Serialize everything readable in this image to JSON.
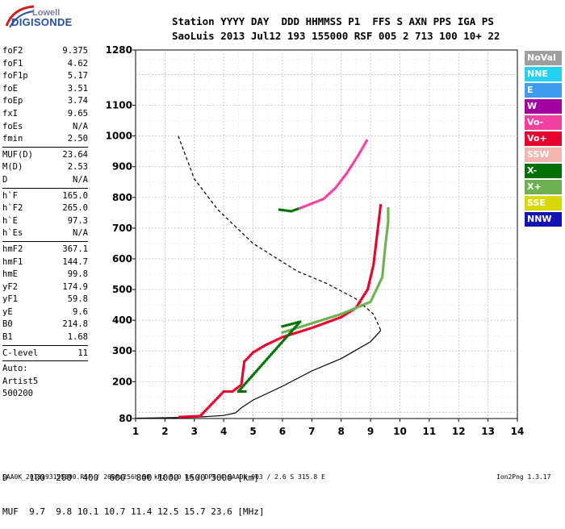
{
  "logo": {
    "line1": "Lowell",
    "line2": "DIGISONDE"
  },
  "header": {
    "line1": "Station YYYY DAY  DDD HHMMSS P1  FFS S AXN PPS IGA PS",
    "line2": "SaoLuis 2013 Jul12 193 155000 RSF 005 2 713 100 10+ 22"
  },
  "params": {
    "group1": [
      {
        "label": "foF2",
        "value": "9.375"
      },
      {
        "label": "foF1",
        "value": "4.62"
      },
      {
        "label": "foF1p",
        "value": "5.17"
      },
      {
        "label": "foE",
        "value": "3.51"
      },
      {
        "label": "foEp",
        "value": "3.74"
      },
      {
        "label": "fxI",
        "value": "9.65"
      },
      {
        "label": "foEs",
        "value": "N/A"
      },
      {
        "label": "fmin",
        "value": "2.50"
      }
    ],
    "group2": [
      {
        "label": "MUF(D)",
        "value": "23.64"
      },
      {
        "label": "M(D)",
        "value": "2.53"
      },
      {
        "label": "D",
        "value": "N/A"
      }
    ],
    "group3": [
      {
        "label": "h`F",
        "value": "165.0"
      },
      {
        "label": "h`F2",
        "value": "265.0"
      },
      {
        "label": "h`E",
        "value": "97.3"
      },
      {
        "label": "h`Es",
        "value": "N/A"
      }
    ],
    "group4": [
      {
        "label": "hmF2",
        "value": "367.1"
      },
      {
        "label": "hmF1",
        "value": "144.7"
      },
      {
        "label": "hmE",
        "value": "99.8"
      },
      {
        "label": "yF2",
        "value": "174.9"
      },
      {
        "label": "yF1",
        "value": "59.8"
      },
      {
        "label": "yE",
        "value": "9.6"
      },
      {
        "label": "B0",
        "value": "214.8"
      },
      {
        "label": "B1",
        "value": "1.68"
      }
    ],
    "group5": [
      {
        "label": "C-level",
        "value": "11"
      }
    ],
    "auto": [
      "Auto:",
      "Artist5",
      "500200"
    ]
  },
  "legend": [
    {
      "label": "NoVal",
      "color": "#9e9e9e"
    },
    {
      "label": "NNE",
      "color": "#22d2f0"
    },
    {
      "label": "E",
      "color": "#3c9cf0"
    },
    {
      "label": "W",
      "color": "#a000a0"
    },
    {
      "label": "Vo-",
      "color": "#f040a0"
    },
    {
      "label": "Vo+",
      "color": "#e8002c"
    },
    {
      "label": "SSW",
      "color": "#f4b4b0"
    },
    {
      "label": "X-",
      "color": "#007000"
    },
    {
      "label": "X+",
      "color": "#6cb050"
    },
    {
      "label": "SSE",
      "color": "#d8d800"
    },
    {
      "label": "NNW",
      "color": "#1414b4"
    }
  ],
  "dtable": {
    "d_row": "D    100  200  400  600  800 1000 1500 3000 [km]",
    "muf_row": "MUF  9.7  9.8 10.1 10.7 11.4 12.5 15.7 23.6 [MHz]"
  },
  "footer": {
    "left": "SAA0K_2013193155000.RSF / 260fx256h 50 kHz 5.0 km / DPS-4 SAA0K 903 / 2.6 S 315.8 E",
    "right": "Ion2Png 1.3.17"
  },
  "chart_data": {
    "type": "scatter",
    "title": "",
    "xlabel": "",
    "ylabel": "",
    "xlim": [
      1,
      14
    ],
    "ylim": [
      80,
      1280
    ],
    "x_ticks": [
      1,
      2,
      3,
      4,
      5,
      6,
      7,
      8,
      9,
      10,
      11,
      12,
      13,
      14
    ],
    "y_ticks": [
      80,
      200,
      300,
      400,
      500,
      600,
      700,
      800,
      900,
      1000,
      1100,
      1280
    ],
    "grid": true,
    "series": [
      {
        "name": "",
        "kind": "line",
        "color": "#000000",
        "dash": false,
        "points": [
          [
            1,
            81
          ],
          [
            3,
            84
          ],
          [
            4,
            90
          ],
          [
            4.4,
            98
          ],
          [
            4.6,
            115
          ],
          [
            5,
            140
          ],
          [
            6,
            185
          ],
          [
            7,
            235
          ],
          [
            8,
            275
          ],
          [
            9,
            330
          ],
          [
            9.35,
            367
          ]
        ]
      },
      {
        "name": "",
        "kind": "line",
        "color": "#000000",
        "dash": true,
        "points": [
          [
            2.45,
            1000
          ],
          [
            3,
            860
          ],
          [
            3.8,
            760
          ],
          [
            5,
            650
          ],
          [
            6.5,
            560
          ],
          [
            7.5,
            520
          ],
          [
            8.5,
            470
          ],
          [
            9.1,
            420
          ],
          [
            9.35,
            367
          ]
        ]
      },
      {
        "name": "Vo+",
        "kind": "trace",
        "color": "#e8002c",
        "points": [
          [
            2.5,
            85
          ],
          [
            3.2,
            88
          ],
          [
            4,
            168
          ],
          [
            4.3,
            168
          ],
          [
            4.6,
            190
          ],
          [
            4.7,
            265
          ],
          [
            5.0,
            295
          ],
          [
            5.4,
            318
          ],
          [
            6,
            345
          ],
          [
            7,
            375
          ],
          [
            8,
            410
          ],
          [
            8.5,
            440
          ],
          [
            8.9,
            500
          ],
          [
            9.1,
            580
          ],
          [
            9.2,
            660
          ],
          [
            9.3,
            740
          ],
          [
            9.35,
            780
          ]
        ]
      },
      {
        "name": "X+",
        "kind": "trace",
        "color": "#6cb050",
        "points": [
          [
            6,
            360
          ],
          [
            7,
            390
          ],
          [
            8,
            420
          ],
          [
            9,
            460
          ],
          [
            9.4,
            540
          ],
          [
            9.5,
            640
          ],
          [
            9.6,
            720
          ],
          [
            9.6,
            770
          ]
        ]
      },
      {
        "name": "X-",
        "kind": "trace",
        "color": "#007000",
        "points": [
          [
            5.9,
            760
          ],
          [
            6.3,
            755
          ],
          [
            6.6,
            765
          ],
          [
            6,
            380
          ],
          [
            6.6,
            395
          ],
          [
            4.5,
            168
          ],
          [
            4.8,
            168
          ]
        ]
      },
      {
        "name": "Vo-",
        "kind": "trace",
        "color": "#f040a0",
        "points": [
          [
            6.6,
            765
          ],
          [
            7.0,
            780
          ],
          [
            7.4,
            795
          ],
          [
            7.8,
            830
          ],
          [
            8.2,
            880
          ],
          [
            8.6,
            940
          ],
          [
            8.9,
            990
          ]
        ]
      }
    ]
  }
}
